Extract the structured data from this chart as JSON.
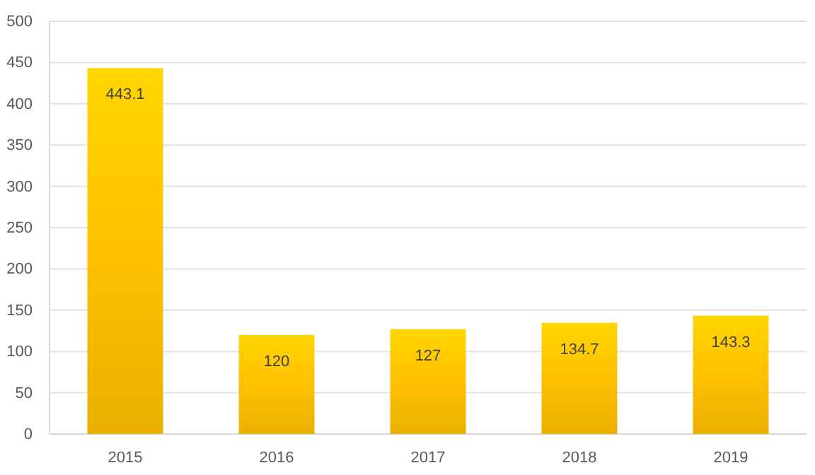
{
  "chart_data": {
    "type": "bar",
    "categories": [
      "2015",
      "2016",
      "2017",
      "2018",
      "2019"
    ],
    "values": [
      443.1,
      120,
      127,
      134.7,
      143.3
    ],
    "color": "#ffc000",
    "ylim": [
      0,
      500
    ],
    "yticks": [
      0,
      50,
      100,
      150,
      200,
      250,
      300,
      350,
      400,
      450,
      500
    ],
    "grid": "y",
    "data_labels": true
  }
}
